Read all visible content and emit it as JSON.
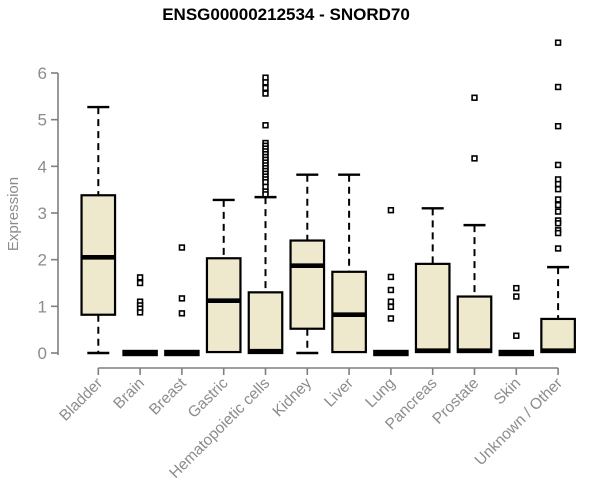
{
  "chart_data": {
    "type": "boxplot",
    "title": "ENSG00000212534 - SNORD70",
    "ylabel": "Expression",
    "xlabel": "",
    "yticks": [
      0,
      1,
      2,
      3,
      4,
      5,
      6
    ],
    "ylim": [
      0,
      6.7
    ],
    "grid": false,
    "legend": null,
    "colors": {
      "box_fill": "#EEE8CD",
      "box_stroke": "#000000",
      "median_stroke": "#000000",
      "whisker_stroke": "#000000",
      "outlier_stroke": "#000000",
      "axis_color": "#7F7F7F",
      "tick_label_color": "#8C8C8C",
      "title_color": "#000000",
      "background": "#FFFFFF"
    },
    "categories": [
      "Bladder",
      "Brain",
      "Breast",
      "Gastric",
      "Hematopoietic cells",
      "Kidney",
      "Liver",
      "Lung",
      "Pancreas",
      "Prostate",
      "Skin",
      "Unknown / Other"
    ],
    "series": [
      {
        "category": "Bladder",
        "whisker_low": 0,
        "q1": 0.82,
        "median": 2.05,
        "q3": 3.38,
        "whisker_high": 5.27,
        "outliers": []
      },
      {
        "category": "Brain",
        "whisker_low": 0,
        "q1": 0,
        "median": 0,
        "q3": 0,
        "whisker_high": 0,
        "outliers": [
          1.62,
          1.5,
          1.1,
          1.02,
          0.95,
          0.87
        ]
      },
      {
        "category": "Breast",
        "whisker_low": 0,
        "q1": 0,
        "median": 0,
        "q3": 0,
        "whisker_high": 0,
        "outliers": [
          2.26,
          1.17,
          0.85
        ]
      },
      {
        "category": "Gastric",
        "whisker_low": 0,
        "q1": 0.02,
        "median": 1.12,
        "q3": 2.03,
        "whisker_high": 3.28,
        "outliers": []
      },
      {
        "category": "Hematopoietic cells",
        "whisker_low": 0,
        "q1": 0,
        "median": 0.04,
        "q3": 1.3,
        "whisker_high": 3.34,
        "outliers": [
          5.9,
          5.8,
          5.68,
          5.56,
          4.88,
          4.5,
          4.44,
          4.38,
          4.32,
          4.26,
          4.2,
          4.14,
          4.08,
          4.02,
          3.96,
          3.9,
          3.84,
          3.78,
          3.72,
          3.66,
          3.56,
          3.46,
          3.4
        ]
      },
      {
        "category": "Kidney",
        "whisker_low": 0,
        "q1": 0.52,
        "median": 1.87,
        "q3": 2.41,
        "whisker_high": 3.82,
        "outliers": []
      },
      {
        "category": "Liver",
        "whisker_low": 0,
        "q1": 0.02,
        "median": 0.82,
        "q3": 1.74,
        "whisker_high": 3.82,
        "outliers": []
      },
      {
        "category": "Lung",
        "whisker_low": 0,
        "q1": 0,
        "median": 0,
        "q3": 0,
        "whisker_high": 0,
        "outliers": [
          3.06,
          1.63,
          1.35,
          1.1,
          0.99,
          0.74
        ]
      },
      {
        "category": "Pancreas",
        "whisker_low": 0,
        "q1": 0.02,
        "median": 0.05,
        "q3": 1.91,
        "whisker_high": 3.1,
        "outliers": []
      },
      {
        "category": "Prostate",
        "whisker_low": 0,
        "q1": 0.02,
        "median": 0.05,
        "q3": 1.21,
        "whisker_high": 2.74,
        "outliers": [
          5.47,
          4.17
        ]
      },
      {
        "category": "Skin",
        "whisker_low": 0,
        "q1": 0,
        "median": 0,
        "q3": 0,
        "whisker_high": 0,
        "outliers": [
          1.39,
          1.21,
          0.37
        ]
      },
      {
        "category": "Unknown / Other",
        "whisker_low": 0,
        "q1": 0.02,
        "median": 0.05,
        "q3": 0.73,
        "whisker_high": 1.84,
        "outliers": [
          6.65,
          5.7,
          4.86,
          4.03,
          3.72,
          3.62,
          3.51,
          3.29,
          3.17,
          3.03,
          2.84,
          2.78,
          2.63,
          2.57,
          2.24
        ]
      }
    ]
  }
}
